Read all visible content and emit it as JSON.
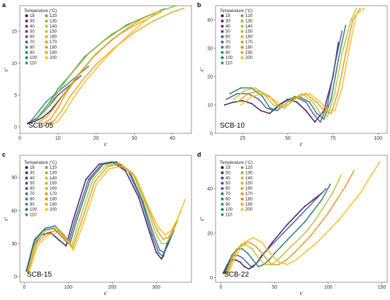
{
  "figure": {
    "legend_title": "Temperature (°C)",
    "xlabel": "ε'",
    "ylabel": "ε''"
  },
  "colors": {
    "18": "#3d0f5c",
    "19": "#3d0f5c",
    "30": "#7a1a6e",
    "40": "#6a2d80",
    "50": "#5a3e8a",
    "60": "#4a5690",
    "70": "#3d6b94",
    "80": "#327e8a",
    "90": "#2b8d80",
    "100": "#23796a",
    "110": "#3b9a5a",
    "120": "#6aa84a",
    "130": "#8fb83c",
    "140": "#b6c330",
    "150": "#c9b82a",
    "160": "#d8a826",
    "170": "#e3951f",
    "180": "#eb8418",
    "190": "#f0a21a",
    "200": "#f3be1f"
  },
  "chart_data": [
    {
      "type": "line",
      "panel": "a",
      "sample_label": "SCB-05",
      "xlim": [
        0,
        45
      ],
      "ylim": [
        -1,
        19
      ],
      "xticks": [
        0,
        10,
        20,
        30,
        40
      ],
      "yticks": [
        0,
        5,
        10,
        15
      ],
      "legend": [
        "18",
        "30",
        "40",
        "50",
        "60",
        "70",
        "80",
        "90",
        "100",
        "110",
        "120",
        "130",
        "140",
        "150",
        "160",
        "170",
        "180",
        "190",
        "200"
      ],
      "series": [
        {
          "name": "18",
          "x": [
            2,
            4,
            6,
            8,
            10,
            12,
            14
          ],
          "y": [
            0.5,
            0.9,
            1.5,
            2.5,
            4,
            5.5,
            7
          ]
        },
        {
          "name": "50",
          "x": [
            2,
            4,
            6,
            8,
            10,
            13,
            16
          ],
          "y": [
            0.6,
            1.2,
            2.2,
            3.5,
            5,
            6.5,
            8
          ]
        },
        {
          "name": "90",
          "x": [
            3,
            5,
            7,
            9,
            12,
            15,
            18
          ],
          "y": [
            1,
            2.5,
            4,
            5,
            6.5,
            8,
            9.5
          ]
        },
        {
          "name": "110",
          "x": [
            4,
            6,
            8,
            10,
            13,
            17,
            22,
            28,
            34,
            38
          ],
          "y": [
            1,
            2.5,
            4,
            6,
            8,
            11,
            13.5,
            16,
            17.5,
            18.5
          ]
        },
        {
          "name": "130",
          "x": [
            4,
            6,
            8,
            10,
            13,
            18,
            24,
            30,
            36,
            41
          ],
          "y": [
            1,
            2.2,
            3.6,
            5.5,
            8,
            11.5,
            14.5,
            16.5,
            18,
            19
          ]
        },
        {
          "name": "150",
          "x": [
            5,
            7,
            9,
            12,
            15,
            20,
            26,
            32,
            37
          ],
          "y": [
            0.8,
            1.5,
            3,
            5.5,
            8,
            11.5,
            14.5,
            16.5,
            18
          ]
        },
        {
          "name": "170",
          "x": [
            6,
            8,
            10,
            12,
            15,
            19,
            24,
            29,
            33
          ],
          "y": [
            0.5,
            1.2,
            3,
            5.2,
            7.8,
            10.8,
            13.6,
            15.8,
            17.3
          ]
        },
        {
          "name": "190",
          "x": [
            7,
            9,
            11,
            13,
            16,
            20,
            25,
            30,
            35,
            40,
            43
          ],
          "y": [
            0.4,
            1,
            2.6,
            4.6,
            7,
            9.8,
            12.5,
            14.8,
            16.6,
            18,
            18.6
          ]
        },
        {
          "name": "200",
          "x": [
            8,
            10,
            12,
            14,
            17,
            21,
            25,
            29,
            33,
            37
          ],
          "y": [
            0.3,
            0.9,
            2.5,
            4.5,
            7,
            9.8,
            12.4,
            14.7,
            16.7,
            18.4
          ]
        }
      ]
    },
    {
      "type": "line",
      "panel": "b",
      "sample_label": "SCB-10",
      "xlim": [
        10,
        105
      ],
      "ylim": [
        0,
        45
      ],
      "xticks": [
        25,
        50,
        75,
        100
      ],
      "yticks": [
        0,
        10,
        20,
        30,
        40
      ],
      "legend": [
        "18",
        "30",
        "40",
        "50",
        "60",
        "70",
        "80",
        "90",
        "100",
        "110",
        "120",
        "130",
        "140",
        "150",
        "160",
        "170",
        "180",
        "190",
        "200"
      ],
      "series": [
        {
          "name": "18",
          "x": [
            15,
            20,
            25,
            30,
            35,
            40,
            45,
            50,
            55,
            60,
            65,
            70,
            75,
            78
          ],
          "y": [
            10,
            11,
            11.5,
            10.5,
            8,
            7,
            10,
            12,
            11,
            8,
            4,
            8,
            20,
            32
          ]
        },
        {
          "name": "60",
          "x": [
            16,
            22,
            28,
            34,
            38,
            42,
            48,
            54,
            60,
            64,
            68,
            72,
            76,
            80
          ],
          "y": [
            12,
            14,
            14,
            12,
            9,
            8,
            11,
            13,
            11,
            7,
            4,
            10,
            24,
            36
          ]
        },
        {
          "name": "100",
          "x": [
            18,
            24,
            30,
            36,
            40,
            44,
            50,
            56,
            62,
            66,
            70,
            74,
            78,
            82
          ],
          "y": [
            14,
            16,
            16,
            13,
            9,
            8,
            11,
            13,
            11,
            7,
            5,
            12,
            26,
            38
          ]
        },
        {
          "name": "140",
          "x": [
            20,
            26,
            32,
            38,
            42,
            46,
            52,
            58,
            64,
            68,
            72,
            76,
            80,
            85,
            88
          ],
          "y": [
            12,
            15,
            16,
            13,
            10,
            9,
            12,
            14,
            11,
            7,
            6,
            14,
            28,
            40,
            44
          ]
        },
        {
          "name": "170",
          "x": [
            22,
            28,
            34,
            40,
            44,
            48,
            54,
            60,
            66,
            70,
            74,
            78,
            82,
            86,
            90
          ],
          "y": [
            11,
            14,
            15,
            13,
            10,
            9,
            12,
            14,
            11,
            8,
            7,
            15,
            28,
            40,
            44
          ]
        },
        {
          "name": "200",
          "x": [
            24,
            30,
            36,
            42,
            46,
            50,
            56,
            62,
            68,
            72,
            76,
            80,
            84,
            88,
            92
          ],
          "y": [
            10,
            13,
            14,
            12,
            10,
            10,
            13,
            14,
            11,
            8,
            8,
            16,
            30,
            42,
            44
          ]
        }
      ]
    },
    {
      "type": "line",
      "panel": "c",
      "sample_label": "SCB-15",
      "xlim": [
        -10,
        380
      ],
      "ylim": [
        -5,
        110
      ],
      "xticks": [
        0,
        100,
        200,
        300
      ],
      "yticks": [
        0,
        30,
        60,
        90
      ],
      "legend": [
        "18",
        "30",
        "40",
        "50",
        "60",
        "70",
        "80",
        "90",
        "100",
        "110",
        "120",
        "130",
        "140",
        "150",
        "160",
        "170",
        "180",
        "190",
        "200"
      ],
      "series": [
        {
          "name": "18",
          "x": [
            5,
            20,
            40,
            60,
            80,
            95,
            110,
            140,
            170,
            200,
            230,
            260,
            285,
            300,
            312,
            318,
            325
          ],
          "y": [
            5,
            28,
            38,
            40,
            33,
            28,
            50,
            88,
            102,
            104,
            96,
            72,
            40,
            22,
            16,
            22,
            30
          ]
        },
        {
          "name": "60",
          "x": [
            5,
            22,
            44,
            66,
            86,
            100,
            116,
            146,
            176,
            206,
            236,
            266,
            290,
            305,
            316,
            322,
            332
          ],
          "y": [
            6,
            32,
            42,
            44,
            36,
            30,
            52,
            88,
            102,
            104,
            96,
            70,
            38,
            22,
            18,
            26,
            36
          ]
        },
        {
          "name": "100",
          "x": [
            6,
            24,
            48,
            70,
            90,
            104,
            120,
            150,
            180,
            210,
            240,
            270,
            294,
            308,
            318,
            328,
            340
          ],
          "y": [
            6,
            34,
            44,
            46,
            38,
            30,
            52,
            88,
            102,
            104,
            95,
            68,
            38,
            24,
            22,
            30,
            42
          ]
        },
        {
          "name": "140",
          "x": [
            8,
            26,
            50,
            74,
            94,
            108,
            126,
            156,
            186,
            216,
            246,
            276,
            298,
            312,
            322,
            334,
            348
          ],
          "y": [
            5,
            32,
            42,
            44,
            36,
            28,
            52,
            88,
            101,
            103,
            94,
            66,
            40,
            30,
            30,
            38,
            50
          ]
        },
        {
          "name": "170",
          "x": [
            8,
            28,
            52,
            76,
            96,
            110,
            130,
            160,
            190,
            220,
            250,
            280,
            302,
            316,
            328,
            340,
            356
          ],
          "y": [
            4,
            30,
            40,
            42,
            34,
            26,
            50,
            86,
            100,
            102,
            92,
            64,
            42,
            34,
            36,
            44,
            60
          ]
        },
        {
          "name": "200",
          "x": [
            10,
            30,
            54,
            78,
            98,
            112,
            134,
            164,
            194,
            224,
            254,
            284,
            306,
            320,
            334,
            348,
            366
          ],
          "y": [
            3,
            28,
            38,
            40,
            32,
            24,
            48,
            84,
            98,
            100,
            90,
            62,
            44,
            38,
            42,
            52,
            70
          ]
        }
      ]
    },
    {
      "type": "line",
      "panel": "d",
      "sample_label": "SCB-22",
      "xlim": [
        -5,
        155
      ],
      "ylim": [
        -2,
        55
      ],
      "xticks": [
        0,
        50,
        100,
        150
      ],
      "yticks": [
        0,
        20,
        40
      ],
      "legend": [
        "19",
        "30",
        "40",
        "50",
        "60",
        "70",
        "80",
        "90",
        "100",
        "110",
        "120",
        "130",
        "140",
        "150",
        "160",
        "170",
        "180",
        "190",
        "200"
      ],
      "series": [
        {
          "name": "19",
          "x": [
            2,
            6,
            10,
            14,
            18,
            22,
            26,
            30,
            34,
            38,
            42,
            48,
            55,
            62,
            70,
            78,
            86,
            94
          ],
          "y": [
            2,
            6,
            8,
            8,
            7,
            5,
            4,
            5,
            7,
            10,
            12,
            16,
            20,
            24,
            28,
            32,
            35,
            38
          ]
        },
        {
          "name": "60",
          "x": [
            3,
            8,
            12,
            16,
            20,
            24,
            28,
            32,
            36,
            40,
            44,
            50,
            58,
            66,
            74,
            82,
            90,
            98
          ],
          "y": [
            2,
            8,
            10,
            10,
            9,
            7,
            5,
            6,
            8,
            11,
            13,
            16,
            20,
            24,
            28,
            32,
            36,
            40
          ]
        },
        {
          "name": "100",
          "x": [
            4,
            10,
            15,
            20,
            25,
            30,
            35,
            40,
            45,
            50,
            56,
            62,
            70,
            78,
            86,
            94,
            102
          ],
          "y": [
            2,
            10,
            13,
            13,
            11,
            8,
            5,
            6,
            8,
            11,
            14,
            17,
            21,
            25,
            30,
            35,
            42
          ]
        },
        {
          "name": "140",
          "x": [
            5,
            11,
            17,
            23,
            29,
            35,
            41,
            47,
            53,
            59,
            65,
            72,
            80,
            88,
            96,
            104,
            112
          ],
          "y": [
            2,
            10,
            14,
            15,
            13,
            9,
            6,
            6,
            8,
            11,
            14,
            17,
            21,
            26,
            32,
            38,
            46
          ]
        },
        {
          "name": "170",
          "x": [
            6,
            12,
            19,
            26,
            33,
            40,
            47,
            54,
            61,
            68,
            76,
            84,
            92,
            100,
            108,
            116,
            124
          ],
          "y": [
            2,
            10,
            15,
            16,
            14,
            10,
            6,
            6,
            8,
            11,
            15,
            19,
            24,
            29,
            35,
            41,
            48
          ]
        },
        {
          "name": "200",
          "x": [
            7,
            14,
            22,
            30,
            38,
            46,
            54,
            62,
            70,
            80,
            90,
            100,
            110,
            120,
            130,
            140,
            148
          ],
          "y": [
            2,
            10,
            16,
            18,
            16,
            11,
            7,
            6,
            8,
            12,
            16,
            21,
            26,
            32,
            38,
            46,
            52
          ]
        }
      ]
    }
  ]
}
